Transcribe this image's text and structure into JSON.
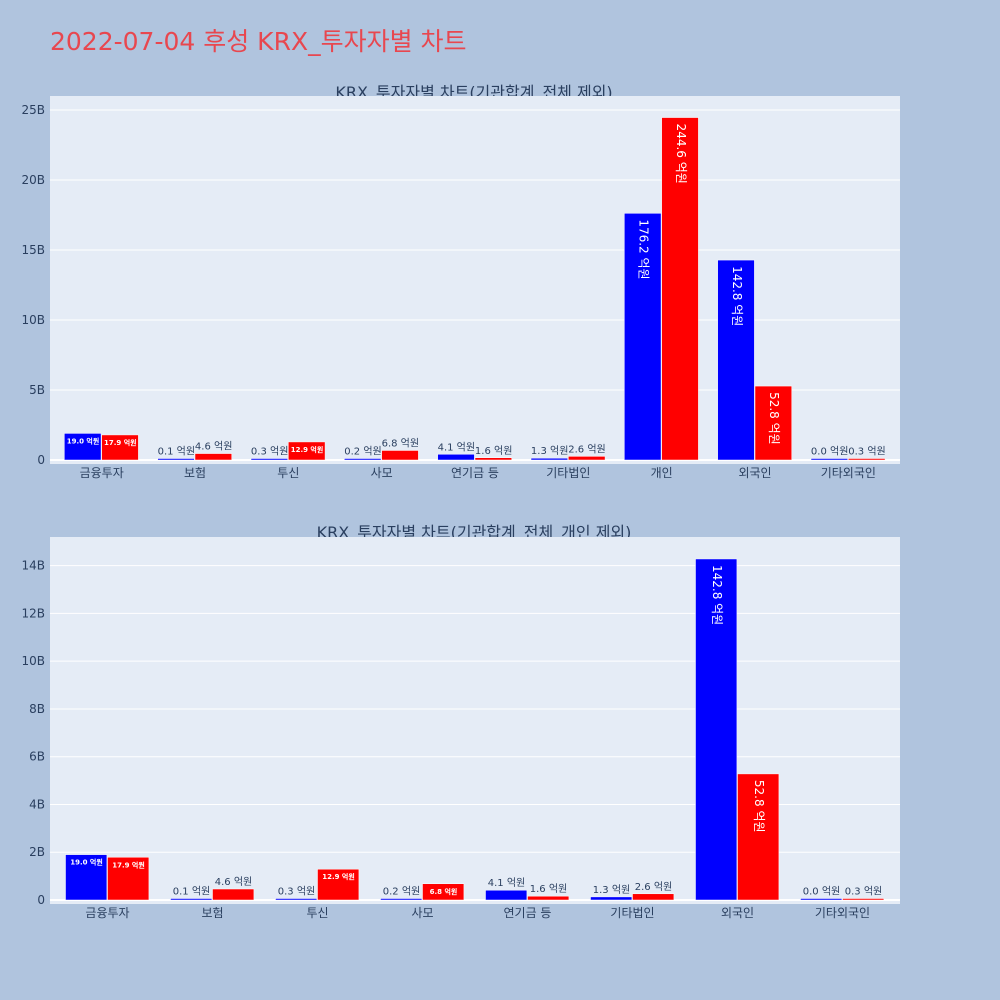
{
  "page": {
    "title": "2022-07-04 후성 KRX_투자자별 차트"
  },
  "colors": {
    "buy": "#0000ff",
    "sell": "#ff0000",
    "plot_bg": "#e5ecf6",
    "page_bg": "#b0c4de",
    "title": "#e8474f"
  },
  "chart_data": [
    {
      "type": "bar",
      "title": "KRX_투자자별 차트(기관합계_전체 제외)",
      "categories": [
        "금융투자",
        "보험",
        "투신",
        "사모",
        "연기금 등",
        "기타법인",
        "개인",
        "외국인",
        "기타외국인"
      ],
      "series": [
        {
          "values": [
            1.9,
            0.01,
            0.03,
            0.02,
            0.41,
            0.13,
            17.62,
            14.28,
            0.0
          ],
          "labels": [
            "19.0 억원",
            "0.1 억원",
            "0.3 억원",
            "0.2 억원",
            "4.1 억원",
            "1.3 억원",
            "176.2 억원",
            "142.8 억원",
            "0.0 억원"
          ]
        },
        {
          "values": [
            1.79,
            0.46,
            1.29,
            0.68,
            0.16,
            0.26,
            24.46,
            5.28,
            0.03
          ],
          "labels": [
            "17.9 억원",
            "4.6 억원",
            "12.9 억원",
            "6.8 억원",
            "1.6 억원",
            "2.6 억원",
            "244.6 억원",
            "52.8 억원",
            "0.3 억원"
          ]
        }
      ],
      "ylim": [
        0,
        26
      ],
      "yticks": [
        0,
        5,
        10,
        15,
        20,
        25
      ],
      "ytick_labels": [
        "0",
        "5B",
        "10B",
        "15B",
        "20B",
        "25B"
      ],
      "grid": true
    },
    {
      "type": "bar",
      "title": "KRX_투자자별 차트(기관합계_전체_개인 제외)",
      "categories": [
        "금융투자",
        "보험",
        "투신",
        "사모",
        "연기금 등",
        "기타법인",
        "외국인",
        "기타외국인"
      ],
      "series": [
        {
          "values": [
            1.9,
            0.01,
            0.03,
            0.02,
            0.41,
            0.13,
            14.28,
            0.0
          ],
          "labels": [
            "19.0 억원",
            "0.1 억원",
            "0.3 억원",
            "0.2 억원",
            "4.1 억원",
            "1.3 억원",
            "142.8 억원",
            "0.0 억원"
          ]
        },
        {
          "values": [
            1.79,
            0.46,
            1.29,
            0.68,
            0.16,
            0.26,
            5.28,
            0.03
          ],
          "labels": [
            "17.9 억원",
            "4.6 억원",
            "12.9 억원",
            "6.8 억원",
            "1.6 억원",
            "2.6 억원",
            "52.8 억원",
            "0.3 억원"
          ]
        }
      ],
      "ylim": [
        0,
        15.2
      ],
      "yticks": [
        0,
        2,
        4,
        6,
        8,
        10,
        12,
        14
      ],
      "ytick_labels": [
        "0",
        "2B",
        "4B",
        "6B",
        "8B",
        "10B",
        "12B",
        "14B"
      ],
      "grid": true
    }
  ]
}
